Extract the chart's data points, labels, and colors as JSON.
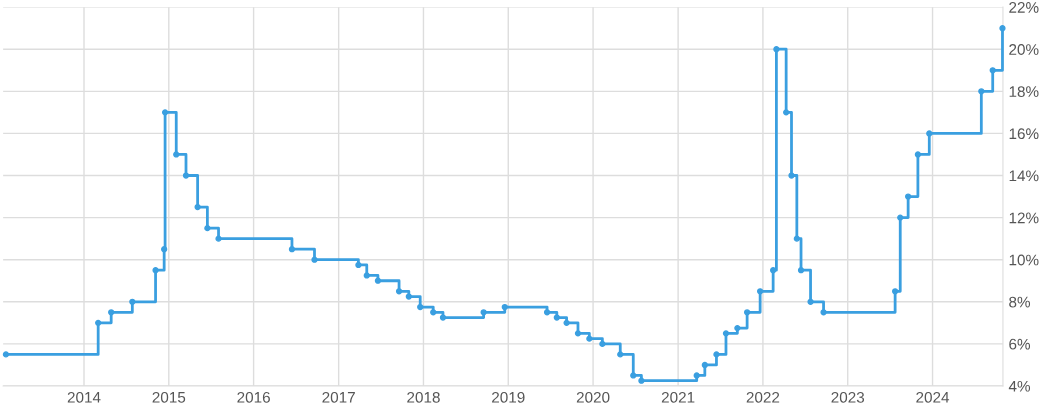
{
  "chart_data": {
    "type": "step",
    "x": [
      "2013-01-30",
      "2014-03-03",
      "2014-04-28",
      "2014-07-28",
      "2014-11-05",
      "2014-12-12",
      "2014-12-16",
      "2015-02-02",
      "2015-03-16",
      "2015-05-05",
      "2015-06-16",
      "2015-08-03",
      "2016-06-14",
      "2016-09-19",
      "2017-03-27",
      "2017-05-02",
      "2017-06-19",
      "2017-09-18",
      "2017-10-30",
      "2017-12-18",
      "2018-02-12",
      "2018-03-26",
      "2018-09-17",
      "2018-12-17",
      "2019-06-17",
      "2019-07-29",
      "2019-09-09",
      "2019-10-28",
      "2019-12-16",
      "2020-02-10",
      "2020-04-27",
      "2020-06-22",
      "2020-07-27",
      "2021-03-22",
      "2021-04-26",
      "2021-06-15",
      "2021-07-26",
      "2021-09-13",
      "2021-10-25",
      "2021-12-20",
      "2022-02-14",
      "2022-02-28",
      "2022-04-11",
      "2022-05-04",
      "2022-05-27",
      "2022-06-14",
      "2022-07-25",
      "2022-09-19",
      "2023-07-24",
      "2023-08-15",
      "2023-09-18",
      "2023-10-30",
      "2023-12-18",
      "2024-07-29",
      "2024-09-16",
      "2024-10-28"
    ],
    "series": [
      {
        "color": "#3a9fe0",
        "values": [
          5.5,
          7,
          7.5,
          8,
          9.5,
          10.5,
          17,
          15,
          14,
          12.5,
          11.5,
          11,
          10.5,
          10,
          9.75,
          9.25,
          9,
          8.5,
          8.25,
          7.75,
          7.5,
          7.25,
          7.5,
          7.75,
          7.5,
          7.25,
          7,
          6.5,
          6.25,
          6,
          5.5,
          4.5,
          4.25,
          4.5,
          5,
          5.5,
          6.5,
          6.75,
          7.5,
          8.5,
          9.5,
          20,
          17,
          14,
          11,
          9.5,
          8,
          7.5,
          8.5,
          12,
          13,
          15,
          16,
          18,
          19,
          21
        ]
      }
    ],
    "xlim": [
      "2013-01-18",
      "2024-10-30"
    ],
    "xticks": [
      {
        "value": "2014-01-01",
        "label": "2014"
      },
      {
        "value": "2015-01-01",
        "label": "2015"
      },
      {
        "value": "2016-01-01",
        "label": "2016"
      },
      {
        "value": "2017-01-01",
        "label": "2017"
      },
      {
        "value": "2018-01-01",
        "label": "2018"
      },
      {
        "value": "2019-01-01",
        "label": "2019"
      },
      {
        "value": "2020-01-01",
        "label": "2020"
      },
      {
        "value": "2021-01-01",
        "label": "2021"
      },
      {
        "value": "2022-01-01",
        "label": "2022"
      },
      {
        "value": "2023-01-01",
        "label": "2023"
      },
      {
        "value": "2024-01-01",
        "label": "2024"
      }
    ],
    "ylim": [
      4,
      22
    ],
    "yticks": [
      {
        "value": 4,
        "label": "4%"
      },
      {
        "value": 6,
        "label": "6%"
      },
      {
        "value": 8,
        "label": "8%"
      },
      {
        "value": 10,
        "label": "10%"
      },
      {
        "value": 12,
        "label": "12%"
      },
      {
        "value": 14,
        "label": "14%"
      },
      {
        "value": 16,
        "label": "16%"
      },
      {
        "value": 18,
        "label": "18%"
      },
      {
        "value": 20,
        "label": "20%"
      },
      {
        "value": 22,
        "label": "22%"
      }
    ],
    "grid": true,
    "marker": "circle",
    "line_style": "solid",
    "legend": false
  }
}
